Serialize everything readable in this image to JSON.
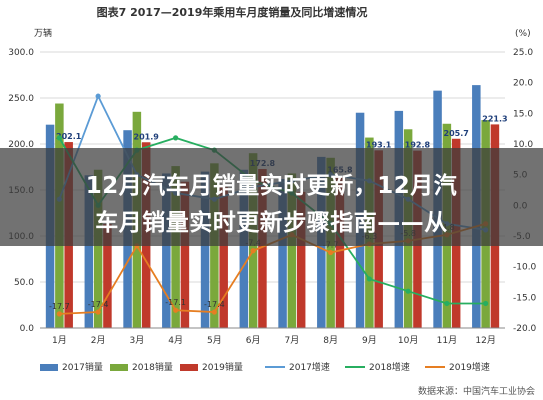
{
  "chart_data": {
    "type": "bar",
    "title": "图表7  2017—2019年乘用车月度销量及同比增速情况",
    "y_left_unit": "万辆",
    "y_right_unit": "(%)",
    "ylim_left": [
      0,
      300
    ],
    "ylim_right": [
      -20,
      25
    ],
    "y_left_ticks": [
      "0.0",
      "50.0",
      "100.0",
      "150.0",
      "200.0",
      "250.0",
      "300.0"
    ],
    "y_right_ticks": [
      "-20.0",
      "-15.0",
      "-10.0",
      "-5.0",
      "0.0",
      "5.0",
      "10.0",
      "15.0",
      "20.0",
      "25.0"
    ],
    "categories": [
      "1月",
      "2月",
      "3月",
      "4月",
      "5月",
      "6月",
      "7月",
      "8月",
      "9月",
      "10月",
      "11月",
      "12月"
    ],
    "bar_series": [
      {
        "name": "2017销量",
        "color": "#4a7ebb",
        "values": [
          221,
          166,
          215,
          168,
          170,
          172,
          162,
          186,
          234,
          236,
          258,
          264
        ]
      },
      {
        "name": "2018销量",
        "color": "#7aa83c",
        "values": [
          244,
          172,
          235,
          176,
          179,
          190,
          168,
          185,
          207,
          216,
          222,
          226
        ]
      },
      {
        "name": "2019销量",
        "color": "#c0392b",
        "values": [
          202.1,
          113,
          201.9,
          159,
          153,
          172.8,
          148,
          165.8,
          193.1,
          192.8,
          205.7,
          221.3
        ]
      }
    ],
    "line_series": [
      {
        "name": "2017增速",
        "color": "#5b9bd5",
        "values": [
          1,
          17.8,
          5,
          2,
          1,
          3,
          4,
          5,
          4,
          1,
          -3,
          -4
        ]
      },
      {
        "name": "2018增速",
        "color": "#27ae60",
        "values": [
          11,
          0,
          9,
          11,
          9,
          4,
          2,
          -3,
          -12,
          -14,
          -16,
          -16
        ]
      },
      {
        "name": "2019增速",
        "color": "#e67e22",
        "values": [
          -17.7,
          -17.4,
          -6.6,
          -17.1,
          -17.4,
          -7.4,
          -4.8,
          -7.7,
          -6.3,
          -5.8,
          -4.8,
          -3
        ]
      }
    ],
    "bar_labels_2019": [
      "202.1",
      "",
      "201.9",
      "",
      "",
      "172.8",
      "",
      "165.8",
      "193.1",
      "192.8",
      "205.7",
      "221.3"
    ],
    "growth_labels_2019": [
      "-17.7",
      "-17.4",
      "",
      "-17.1",
      "-17.4",
      "-7.4",
      "",
      "-7.7",
      "-6.3",
      "-5.8",
      "-4.8",
      ""
    ],
    "source": "数据来源：中国汽车工业协会"
  },
  "banner": {
    "line1": "12月汽车月销量实时更新，12月汽",
    "line2": "车月销量实时更新步骤指南——从"
  }
}
